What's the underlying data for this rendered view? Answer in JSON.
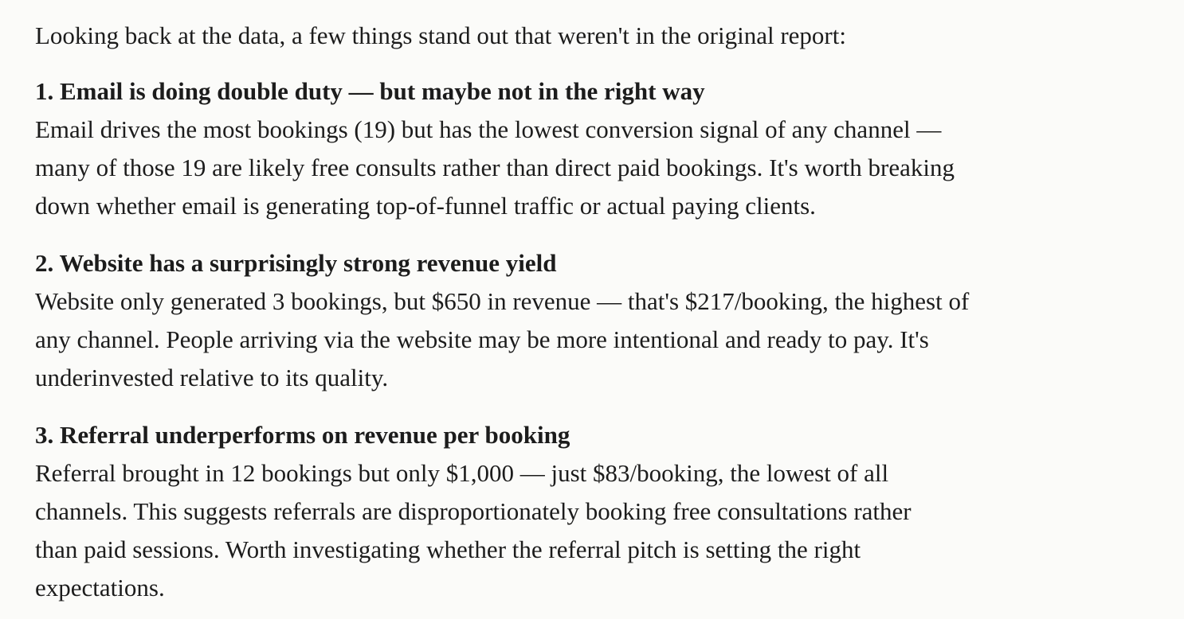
{
  "intro": "Looking back at the data, a few things stand out that weren't in the original report:",
  "items": [
    {
      "heading": "1. Email is doing double duty — but maybe not in the right way",
      "lines": [
        "Email drives the most bookings (19) but has the lowest conversion signal of any channel —",
        "many of those 19 are likely free consults rather than direct paid bookings. It's worth breaking",
        "down whether email is generating top-of-funnel traffic or actual paying clients."
      ]
    },
    {
      "heading": "2. Website has a surprisingly strong revenue yield",
      "lines": [
        "Website only generated 3 bookings, but $650 in revenue — that's $217/booking, the highest of",
        "any channel. People arriving via the website may be more intentional and ready to pay. It's",
        "underinvested relative to its quality."
      ]
    },
    {
      "heading": "3. Referral underperforms on revenue per booking",
      "lines": [
        "Referral brought in 12 bookings but only $1,000 — just $83/booking, the lowest of all",
        "channels. This suggests referrals are disproportionately booking free consultations rather",
        "than paid sessions. Worth investigating whether the referral pitch is setting the right",
        "expectations."
      ]
    }
  ]
}
